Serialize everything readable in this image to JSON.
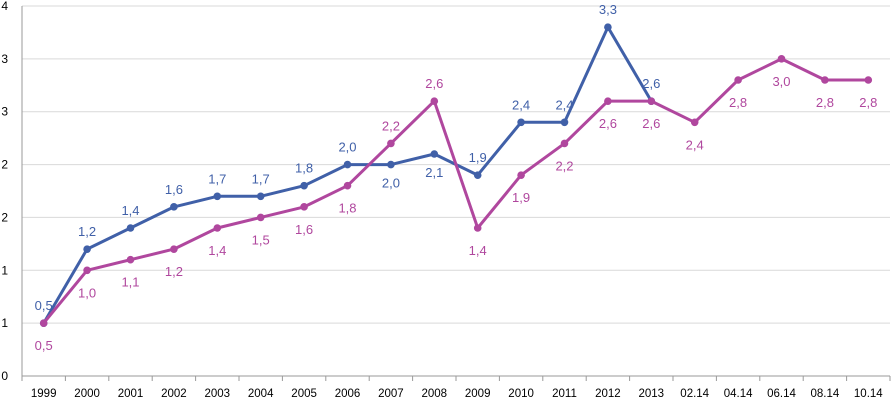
{
  "chart_data": {
    "type": "line",
    "title": "",
    "xlabel": "",
    "ylabel": "",
    "categories": [
      "1999",
      "2000",
      "2001",
      "2002",
      "2003",
      "2004",
      "2005",
      "2006",
      "2007",
      "2008",
      "2009",
      "2010",
      "2011",
      "2012",
      "2013",
      "02.14",
      "04.14",
      "06.14",
      "08.14",
      "10.14"
    ],
    "yticks": [
      "0",
      "1",
      "1",
      "2",
      "2",
      "3",
      "3",
      "4"
    ],
    "ylim": [
      0,
      3.5
    ],
    "grid": "horizontal",
    "legend": "none",
    "series": [
      {
        "color": "#4060A8",
        "values": [
          0.5,
          1.2,
          1.4,
          1.6,
          1.7,
          1.7,
          1.8,
          2.0,
          2.0,
          2.1,
          1.9,
          2.4,
          2.4,
          3.3,
          2.6,
          null,
          null,
          null,
          null,
          null
        ],
        "labels": [
          "0,5",
          "1,2",
          "1,4",
          "1,6",
          "1,7",
          "1,7",
          "1,8",
          "2,0",
          "2,0",
          "2,1",
          "1,9",
          "2,4",
          "2,4",
          "3,3",
          "2,6",
          "",
          "",
          "",
          "",
          ""
        ]
      },
      {
        "color": "#B0479E",
        "values": [
          0.5,
          1.0,
          1.1,
          1.2,
          1.4,
          1.5,
          1.6,
          1.8,
          2.2,
          2.6,
          1.4,
          1.9,
          2.2,
          2.6,
          2.6,
          2.4,
          2.8,
          3.0,
          2.8,
          2.8
        ],
        "labels": [
          "0,5",
          "1,0",
          "1,1",
          "1,2",
          "1,4",
          "1,5",
          "1,6",
          "1,8",
          "2,2",
          "2,6",
          "1,4",
          "1,9",
          "2,2",
          "2,6",
          "2,6",
          "2,4",
          "2,8",
          "3,0",
          "2,8",
          "2,8"
        ]
      }
    ]
  }
}
